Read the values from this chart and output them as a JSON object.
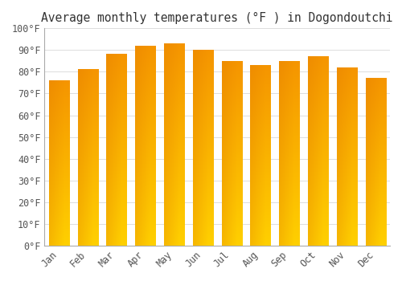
{
  "title": "Average monthly temperatures (°F ) in Dogondoutchi",
  "months": [
    "Jan",
    "Feb",
    "Mar",
    "Apr",
    "May",
    "Jun",
    "Jul",
    "Aug",
    "Sep",
    "Oct",
    "Nov",
    "Dec"
  ],
  "values": [
    76,
    81,
    88,
    92,
    93,
    90,
    85,
    83,
    85,
    87,
    82,
    77
  ],
  "bar_color_bottom": "#FFD000",
  "bar_color_top": "#F59500",
  "bar_color_edge_dark": "#E07800",
  "ylim": [
    0,
    100
  ],
  "yticks": [
    0,
    10,
    20,
    30,
    40,
    50,
    60,
    70,
    80,
    90,
    100
  ],
  "ytick_labels": [
    "0°F",
    "10°F",
    "20°F",
    "30°F",
    "40°F",
    "50°F",
    "60°F",
    "70°F",
    "80°F",
    "90°F",
    "100°F"
  ],
  "background_color": "#FFFFFF",
  "grid_color": "#DDDDDD",
  "title_fontsize": 10.5,
  "tick_fontsize": 8.5,
  "font_family": "monospace",
  "bar_width": 0.7
}
